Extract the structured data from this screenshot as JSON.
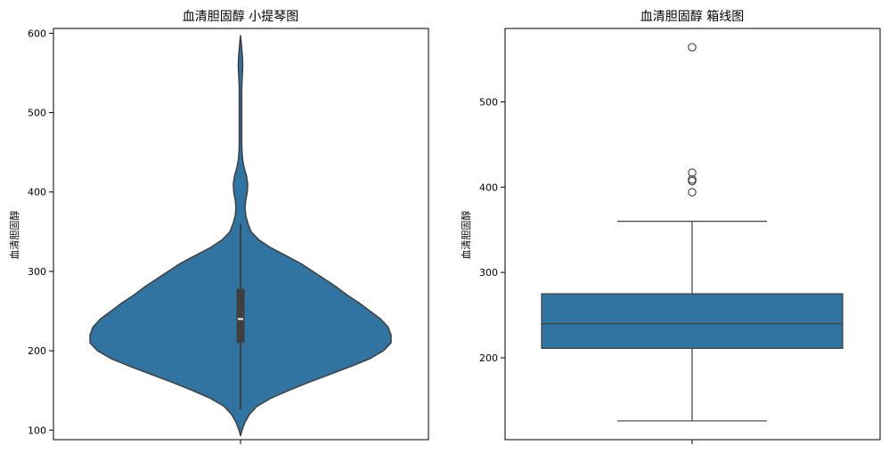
{
  "chart_data": [
    {
      "type": "violin",
      "title": "血清胆固醇 小提琴图",
      "ylabel": "血清胆固醇",
      "xlabel": "",
      "ylim": [
        88,
        606
      ],
      "yticks": [
        100,
        200,
        300,
        400,
        500,
        600
      ],
      "color": "#3274a1",
      "edge_color": "#3f3f3f",
      "kde": {
        "y": [
          93,
          100,
          110,
          120,
          130,
          140,
          150,
          160,
          170,
          180,
          190,
          200,
          210,
          220,
          230,
          240,
          250,
          260,
          270,
          280,
          290,
          300,
          310,
          320,
          330,
          340,
          350,
          360,
          370,
          380,
          390,
          400,
          410,
          420,
          430,
          440,
          450,
          460,
          470,
          480,
          490,
          500,
          510,
          520,
          530,
          540,
          550,
          560,
          570,
          580,
          590,
          597
        ],
        "density": [
          0,
          0.01,
          0.03,
          0.06,
          0.11,
          0.2,
          0.32,
          0.45,
          0.59,
          0.73,
          0.86,
          0.95,
          1.0,
          1.0,
          0.98,
          0.93,
          0.86,
          0.79,
          0.71,
          0.64,
          0.56,
          0.48,
          0.4,
          0.3,
          0.2,
          0.12,
          0.07,
          0.05,
          0.035,
          0.03,
          0.035,
          0.045,
          0.048,
          0.04,
          0.025,
          0.015,
          0.01,
          0.008,
          0.008,
          0.008,
          0.008,
          0.008,
          0.008,
          0.008,
          0.008,
          0.01,
          0.013,
          0.015,
          0.013,
          0.008,
          0.004,
          0
        ]
      },
      "box": {
        "q1": 210,
        "median": 240,
        "q3": 278,
        "whisker_low": 126,
        "whisker_high": 360
      }
    },
    {
      "type": "box",
      "title": "血清胆固醇 箱线图",
      "ylabel": "血清胆固醇",
      "xlabel": "",
      "ylim": [
        104,
        586
      ],
      "yticks": [
        200,
        300,
        400,
        500
      ],
      "color": "#3274a1",
      "edge_color": "#3f3f3f",
      "box": {
        "q1": 211,
        "median": 240,
        "q3": 275,
        "whisker_low": 126,
        "whisker_high": 360
      },
      "outliers": [
        394,
        407,
        409,
        417,
        564
      ]
    }
  ]
}
